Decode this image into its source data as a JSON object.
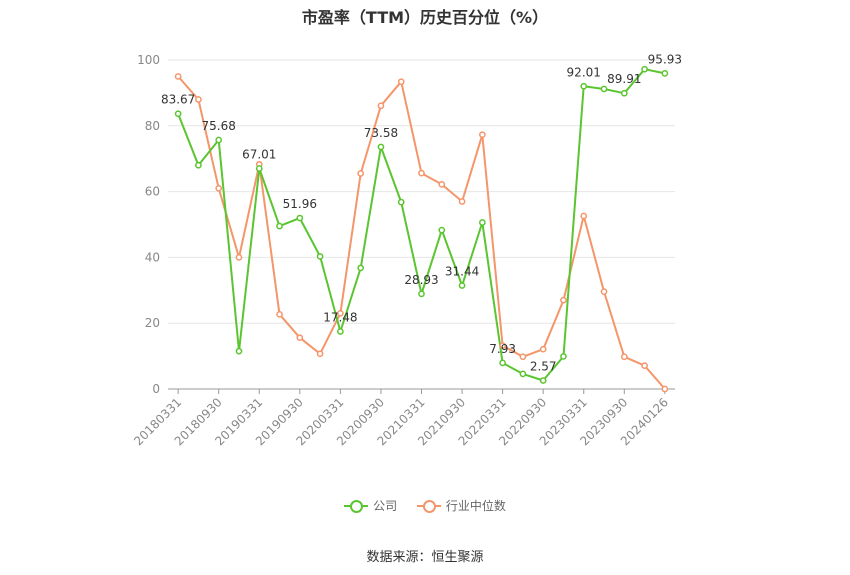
{
  "title": "市盈率（TTM）历史百分位（%）",
  "source": "数据来源：恒生聚源",
  "chart_data": {
    "type": "line",
    "title": "市盈率（TTM）历史百分位（%）",
    "ylim": [
      0,
      100
    ],
    "yticks": [
      0,
      20,
      40,
      60,
      80,
      100
    ],
    "grid": true,
    "legend_position": "bottom",
    "x_tick_labels": [
      "20180331",
      "20180930",
      "20190331",
      "20190930",
      "20200331",
      "20200930",
      "20210331",
      "20210930",
      "20220331",
      "20220930",
      "20230331",
      "20230930",
      "20240126"
    ],
    "x": [
      "20180331",
      "20180630",
      "20180930",
      "20181231",
      "20190331",
      "20190630",
      "20190930",
      "20191231",
      "20200331",
      "20200630",
      "20200930",
      "20201231",
      "20210331",
      "20210630",
      "20210930",
      "20211231",
      "20220331",
      "20220630",
      "20220930",
      "20221231",
      "20230331",
      "20230630",
      "20230930",
      "20231231",
      "20240126"
    ],
    "series": [
      {
        "name": "公司",
        "color": "#5ac530",
        "values": [
          83.67,
          68.0,
          75.68,
          11.5,
          67.01,
          49.5,
          51.96,
          40.3,
          17.48,
          36.8,
          73.58,
          56.8,
          28.93,
          48.3,
          31.44,
          50.6,
          7.93,
          4.6,
          2.57,
          9.9,
          92.01,
          91.2,
          89.91,
          97.2,
          95.93
        ],
        "labels": {
          "0": "83.67",
          "2": "75.68",
          "4": "67.01",
          "6": "51.96",
          "8": "17.48",
          "10": "73.58",
          "12": "28.93",
          "14": "31.44",
          "16": "7.93",
          "18": "2.57",
          "20": "92.01",
          "22": "89.91",
          "24": "95.93"
        }
      },
      {
        "name": "行业中位数",
        "color": "#f4956a",
        "values": [
          95.0,
          88.0,
          61.0,
          40.0,
          68.3,
          22.7,
          15.6,
          10.7,
          23.0,
          65.5,
          86.1,
          93.4,
          65.6,
          62.2,
          57.0,
          77.3,
          13.2,
          9.8,
          12.1,
          27.0,
          52.6,
          29.6,
          9.8,
          7.1,
          0.0
        ],
        "labels": {}
      }
    ]
  }
}
